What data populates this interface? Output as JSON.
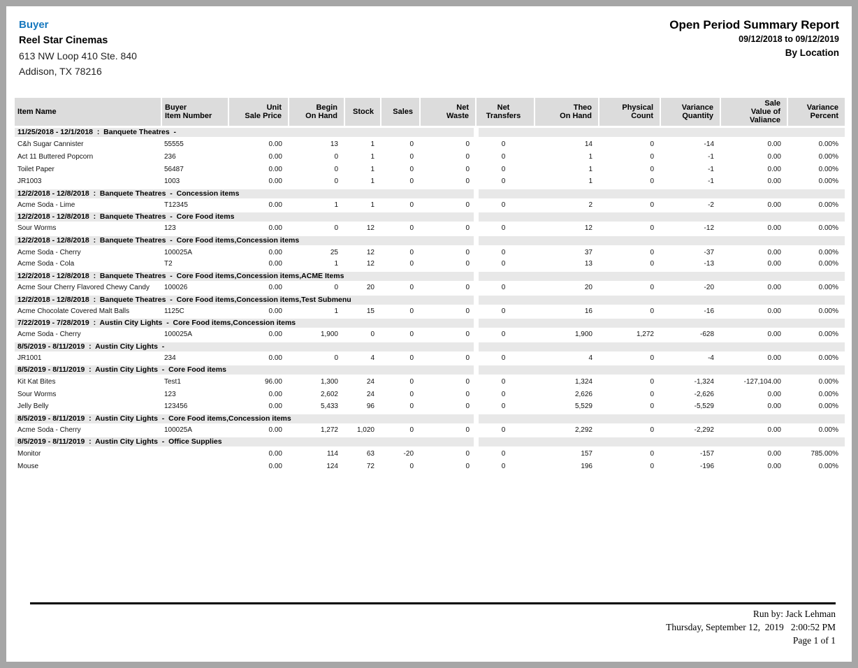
{
  "header": {
    "buyer_label": "Buyer",
    "company": "Reel Star Cinemas",
    "address_line1": "613 NW Loop 410 Ste. 840",
    "address_line2": "Addison, TX 78216",
    "report_title": "Open Period Summary Report",
    "date_range": "09/12/2018 to 09/12/2019",
    "grouping": "By Location"
  },
  "colors": {
    "link_blue": "#1778be",
    "table_header_bg": "#dcdcdc",
    "group_band_bg": "#e8e8e8",
    "page_frame_gray": "#a6a6a6"
  },
  "table": {
    "columns": [
      {
        "label": "Item Name",
        "align": "left"
      },
      {
        "label": "Buyer\nItem Number",
        "align": "left"
      },
      {
        "label": "Unit\nSale Price",
        "align": "right"
      },
      {
        "label": "Begin\nOn Hand",
        "align": "right"
      },
      {
        "label": "Stock",
        "align": "right"
      },
      {
        "label": "Sales",
        "align": "right"
      },
      {
        "label": "Net\nWaste",
        "align": "right"
      },
      {
        "label": "Net Transfers",
        "align": "center"
      },
      {
        "label": "Theo\nOn Hand",
        "align": "right"
      },
      {
        "label": "Physical\nCount",
        "align": "right"
      },
      {
        "label": "Variance\nQuantity",
        "align": "right"
      },
      {
        "label": "Sale\nValue of\nValiance",
        "align": "right"
      },
      {
        "label": "Variance\nPercent",
        "align": "right"
      }
    ],
    "groups": [
      {
        "period": "11/25/2018 - 12/1/2018",
        "location": "Banquete Theatres",
        "categories": "",
        "rows": [
          [
            "C&h Sugar Cannister",
            "55555",
            "0.00",
            "13",
            "1",
            "0",
            "0",
            "0",
            "14",
            "0",
            "-14",
            "0.00",
            "0.00%"
          ],
          [
            "Act 11 Buttered Popcorn",
            "236",
            "0.00",
            "0",
            "1",
            "0",
            "0",
            "0",
            "1",
            "0",
            "-1",
            "0.00",
            "0.00%"
          ],
          [
            "Toilet Paper",
            "56487",
            "0.00",
            "0",
            "1",
            "0",
            "0",
            "0",
            "1",
            "0",
            "-1",
            "0.00",
            "0.00%"
          ],
          [
            "JR1003",
            "1003",
            "0.00",
            "0",
            "1",
            "0",
            "0",
            "0",
            "1",
            "0",
            "-1",
            "0.00",
            "0.00%"
          ]
        ]
      },
      {
        "period": "12/2/2018 - 12/8/2018",
        "location": "Banquete Theatres",
        "categories": "Concession items",
        "rows": [
          [
            "Acme Soda - Lime",
            "T12345",
            "0.00",
            "1",
            "1",
            "0",
            "0",
            "0",
            "2",
            "0",
            "-2",
            "0.00",
            "0.00%"
          ]
        ]
      },
      {
        "period": "12/2/2018 - 12/8/2018",
        "location": "Banquete Theatres",
        "categories": "Core Food items",
        "rows": [
          [
            "Sour Worms",
            "123",
            "0.00",
            "0",
            "12",
            "0",
            "0",
            "0",
            "12",
            "0",
            "-12",
            "0.00",
            "0.00%"
          ]
        ]
      },
      {
        "period": "12/2/2018 - 12/8/2018",
        "location": "Banquete Theatres",
        "categories": "Core Food items,Concession items",
        "rows": [
          [
            "Acme Soda - Cherry",
            "100025A",
            "0.00",
            "25",
            "12",
            "0",
            "0",
            "0",
            "37",
            "0",
            "-37",
            "0.00",
            "0.00%"
          ],
          [
            "Acme Soda - Cola",
            "T2",
            "0.00",
            "1",
            "12",
            "0",
            "0",
            "0",
            "13",
            "0",
            "-13",
            "0.00",
            "0.00%"
          ]
        ]
      },
      {
        "period": "12/2/2018 - 12/8/2018",
        "location": "Banquete Theatres",
        "categories": "Core Food items,Concession items,ACME Items",
        "rows": [
          [
            "Acme Sour Cherry Flavored Chewy Candy",
            "100026",
            "0.00",
            "0",
            "20",
            "0",
            "0",
            "0",
            "20",
            "0",
            "-20",
            "0.00",
            "0.00%"
          ]
        ]
      },
      {
        "period": "12/2/2018 - 12/8/2018",
        "location": "Banquete Theatres",
        "categories": "Core Food items,Concession items,Test Submenu",
        "rows": [
          [
            "Acme Chocolate Covered Malt Balls",
            "1125C",
            "0.00",
            "1",
            "15",
            "0",
            "0",
            "0",
            "16",
            "0",
            "-16",
            "0.00",
            "0.00%"
          ]
        ]
      },
      {
        "period": "7/22/2019 - 7/28/2019",
        "location": "Austin City Lights",
        "categories": "Core Food items,Concession items",
        "rows": [
          [
            "Acme Soda - Cherry",
            "100025A",
            "0.00",
            "1,900",
            "0",
            "0",
            "0",
            "0",
            "1,900",
            "1,272",
            "-628",
            "0.00",
            "0.00%"
          ]
        ]
      },
      {
        "period": "8/5/2019 - 8/11/2019",
        "location": "Austin City Lights",
        "categories": "",
        "rows": [
          [
            "JR1001",
            "234",
            "0.00",
            "0",
            "4",
            "0",
            "0",
            "0",
            "4",
            "0",
            "-4",
            "0.00",
            "0.00%"
          ]
        ]
      },
      {
        "period": "8/5/2019 - 8/11/2019",
        "location": "Austin City Lights",
        "categories": "Core Food items",
        "rows": [
          [
            "Kit Kat Bites",
            "Test1",
            "96.00",
            "1,300",
            "24",
            "0",
            "0",
            "0",
            "1,324",
            "0",
            "-1,324",
            "-127,104.00",
            "0.00%"
          ],
          [
            "Sour Worms",
            "123",
            "0.00",
            "2,602",
            "24",
            "0",
            "0",
            "0",
            "2,626",
            "0",
            "-2,626",
            "0.00",
            "0.00%"
          ],
          [
            "Jelly Belly",
            "123456",
            "0.00",
            "5,433",
            "96",
            "0",
            "0",
            "0",
            "5,529",
            "0",
            "-5,529",
            "0.00",
            "0.00%"
          ]
        ]
      },
      {
        "period": "8/5/2019 - 8/11/2019",
        "location": "Austin City Lights",
        "categories": "Core Food items,Concession items",
        "rows": [
          [
            "Acme Soda - Cherry",
            "100025A",
            "0.00",
            "1,272",
            "1,020",
            "0",
            "0",
            "0",
            "2,292",
            "0",
            "-2,292",
            "0.00",
            "0.00%"
          ]
        ]
      },
      {
        "period": "8/5/2019 - 8/11/2019",
        "location": "Austin City Lights",
        "categories": "Office Supplies",
        "rows": [
          [
            "Monitor",
            "",
            "0.00",
            "114",
            "63",
            "-20",
            "0",
            "0",
            "157",
            "0",
            "-157",
            "0.00",
            "785.00%"
          ],
          [
            "Mouse",
            "",
            "0.00",
            "124",
            "72",
            "0",
            "0",
            "0",
            "196",
            "0",
            "-196",
            "0.00",
            "0.00%"
          ]
        ]
      }
    ]
  },
  "footer": {
    "run_by": "Run by: Jack Lehman",
    "datetime": "Thursday, September 12,  2019   2:00:52 PM",
    "page_info": "Page 1 of 1"
  }
}
